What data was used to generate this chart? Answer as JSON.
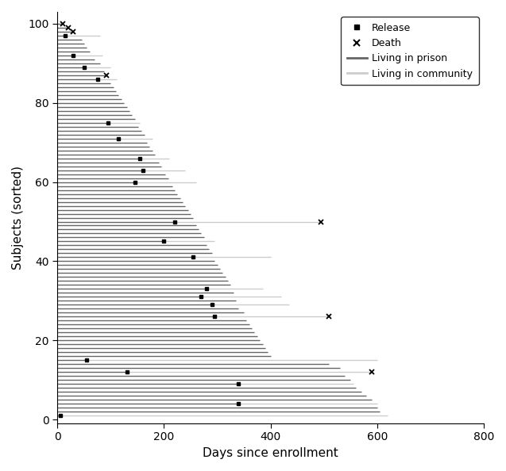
{
  "xlabel": "Days since enrollment",
  "ylabel": "Subjects (sorted)",
  "xlim": [
    0,
    800
  ],
  "ylim": [
    -1,
    103
  ],
  "xticks": [
    0,
    200,
    400,
    600,
    800
  ],
  "yticks": [
    0,
    20,
    40,
    60,
    80,
    100
  ],
  "prison_color": "#666666",
  "community_color": "#cccccc",
  "lw": 1.0,
  "legend_fontsize": 9,
  "axis_fontsize": 11,
  "subjects": [
    {
      "y": 100,
      "prison_end": 10,
      "total": 10,
      "release": null,
      "death": 10
    },
    {
      "y": 99,
      "prison_end": 20,
      "total": 20,
      "release": null,
      "death": 20
    },
    {
      "y": 98,
      "prison_end": 30,
      "total": 30,
      "release": null,
      "death": 30
    },
    {
      "y": 97,
      "prison_end": 15,
      "total": 80,
      "release": 15,
      "death": null
    },
    {
      "y": 96,
      "prison_end": 45,
      "total": 45,
      "release": null,
      "death": null
    },
    {
      "y": 95,
      "prison_end": 50,
      "total": 50,
      "release": null,
      "death": null
    },
    {
      "y": 94,
      "prison_end": 55,
      "total": 55,
      "release": null,
      "death": null
    },
    {
      "y": 93,
      "prison_end": 60,
      "total": 60,
      "release": null,
      "death": null
    },
    {
      "y": 92,
      "prison_end": 30,
      "total": 85,
      "release": 30,
      "death": null
    },
    {
      "y": 91,
      "prison_end": 70,
      "total": 70,
      "release": null,
      "death": null
    },
    {
      "y": 90,
      "prison_end": 80,
      "total": 80,
      "release": null,
      "death": null
    },
    {
      "y": 89,
      "prison_end": 50,
      "total": 100,
      "release": 50,
      "death": null
    },
    {
      "y": 88,
      "prison_end": 88,
      "total": 88,
      "release": null,
      "death": null
    },
    {
      "y": 87,
      "prison_end": 92,
      "total": 92,
      "release": null,
      "death": 92
    },
    {
      "y": 86,
      "prison_end": 75,
      "total": 112,
      "release": 75,
      "death": null
    },
    {
      "y": 85,
      "prison_end": 100,
      "total": 100,
      "release": null,
      "death": null
    },
    {
      "y": 84,
      "prison_end": 105,
      "total": 105,
      "release": null,
      "death": null
    },
    {
      "y": 83,
      "prison_end": 110,
      "total": 110,
      "release": null,
      "death": null
    },
    {
      "y": 82,
      "prison_end": 115,
      "total": 115,
      "release": null,
      "death": null
    },
    {
      "y": 81,
      "prison_end": 120,
      "total": 120,
      "release": null,
      "death": null
    },
    {
      "y": 80,
      "prison_end": 125,
      "total": 125,
      "release": null,
      "death": null
    },
    {
      "y": 79,
      "prison_end": 130,
      "total": 130,
      "release": null,
      "death": null
    },
    {
      "y": 78,
      "prison_end": 135,
      "total": 135,
      "release": null,
      "death": null
    },
    {
      "y": 77,
      "prison_end": 140,
      "total": 140,
      "release": null,
      "death": null
    },
    {
      "y": 76,
      "prison_end": 145,
      "total": 145,
      "release": null,
      "death": null
    },
    {
      "y": 75,
      "prison_end": 95,
      "total": 155,
      "release": 95,
      "death": null
    },
    {
      "y": 74,
      "prison_end": 152,
      "total": 152,
      "release": null,
      "death": null
    },
    {
      "y": 73,
      "prison_end": 158,
      "total": 158,
      "release": null,
      "death": null
    },
    {
      "y": 72,
      "prison_end": 163,
      "total": 163,
      "release": null,
      "death": null
    },
    {
      "y": 71,
      "prison_end": 115,
      "total": 178,
      "release": 115,
      "death": null
    },
    {
      "y": 70,
      "prison_end": 168,
      "total": 168,
      "release": null,
      "death": null
    },
    {
      "y": 69,
      "prison_end": 173,
      "total": 173,
      "release": null,
      "death": null
    },
    {
      "y": 68,
      "prison_end": 178,
      "total": 178,
      "release": null,
      "death": null
    },
    {
      "y": 67,
      "prison_end": 183,
      "total": 183,
      "release": null,
      "death": null
    },
    {
      "y": 66,
      "prison_end": 155,
      "total": 210,
      "release": 155,
      "death": null
    },
    {
      "y": 65,
      "prison_end": 190,
      "total": 190,
      "release": null,
      "death": null
    },
    {
      "y": 64,
      "prison_end": 195,
      "total": 195,
      "release": null,
      "death": null
    },
    {
      "y": 63,
      "prison_end": 160,
      "total": 240,
      "release": 160,
      "death": null
    },
    {
      "y": 62,
      "prison_end": 203,
      "total": 203,
      "release": null,
      "death": null
    },
    {
      "y": 61,
      "prison_end": 208,
      "total": 208,
      "release": null,
      "death": null
    },
    {
      "y": 60,
      "prison_end": 145,
      "total": 260,
      "release": 145,
      "death": null
    },
    {
      "y": 59,
      "prison_end": 215,
      "total": 215,
      "release": null,
      "death": null
    },
    {
      "y": 58,
      "prison_end": 220,
      "total": 220,
      "release": null,
      "death": null
    },
    {
      "y": 57,
      "prison_end": 225,
      "total": 225,
      "release": null,
      "death": null
    },
    {
      "y": 56,
      "prison_end": 230,
      "total": 230,
      "release": null,
      "death": null
    },
    {
      "y": 55,
      "prison_end": 235,
      "total": 235,
      "release": null,
      "death": null
    },
    {
      "y": 54,
      "prison_end": 240,
      "total": 240,
      "release": null,
      "death": null
    },
    {
      "y": 53,
      "prison_end": 245,
      "total": 245,
      "release": null,
      "death": null
    },
    {
      "y": 52,
      "prison_end": 250,
      "total": 250,
      "release": null,
      "death": null
    },
    {
      "y": 51,
      "prison_end": 255,
      "total": 255,
      "release": null,
      "death": null
    },
    {
      "y": 50,
      "prison_end": 220,
      "total": 495,
      "release": 220,
      "death": 495
    },
    {
      "y": 49,
      "prison_end": 260,
      "total": 260,
      "release": null,
      "death": null
    },
    {
      "y": 48,
      "prison_end": 265,
      "total": 265,
      "release": null,
      "death": null
    },
    {
      "y": 47,
      "prison_end": 270,
      "total": 270,
      "release": null,
      "death": null
    },
    {
      "y": 46,
      "prison_end": 275,
      "total": 275,
      "release": null,
      "death": null
    },
    {
      "y": 45,
      "prison_end": 200,
      "total": 295,
      "release": 200,
      "death": null
    },
    {
      "y": 44,
      "prison_end": 280,
      "total": 280,
      "release": null,
      "death": null
    },
    {
      "y": 43,
      "prison_end": 285,
      "total": 285,
      "release": null,
      "death": null
    },
    {
      "y": 42,
      "prison_end": 290,
      "total": 290,
      "release": null,
      "death": null
    },
    {
      "y": 41,
      "prison_end": 255,
      "total": 400,
      "release": 255,
      "death": null
    },
    {
      "y": 40,
      "prison_end": 295,
      "total": 295,
      "release": null,
      "death": null
    },
    {
      "y": 39,
      "prison_end": 300,
      "total": 300,
      "release": null,
      "death": null
    },
    {
      "y": 38,
      "prison_end": 305,
      "total": 305,
      "release": null,
      "death": null
    },
    {
      "y": 37,
      "prison_end": 310,
      "total": 310,
      "release": null,
      "death": null
    },
    {
      "y": 36,
      "prison_end": 315,
      "total": 315,
      "release": null,
      "death": null
    },
    {
      "y": 35,
      "prison_end": 320,
      "total": 320,
      "release": null,
      "death": null
    },
    {
      "y": 34,
      "prison_end": 325,
      "total": 325,
      "release": null,
      "death": null
    },
    {
      "y": 33,
      "prison_end": 280,
      "total": 385,
      "release": 280,
      "death": null
    },
    {
      "y": 32,
      "prison_end": 330,
      "total": 330,
      "release": null,
      "death": null
    },
    {
      "y": 31,
      "prison_end": 270,
      "total": 420,
      "release": 270,
      "death": null
    },
    {
      "y": 30,
      "prison_end": 335,
      "total": 335,
      "release": null,
      "death": null
    },
    {
      "y": 29,
      "prison_end": 290,
      "total": 435,
      "release": 290,
      "death": null
    },
    {
      "y": 28,
      "prison_end": 340,
      "total": 340,
      "release": null,
      "death": null
    },
    {
      "y": 27,
      "prison_end": 350,
      "total": 350,
      "release": null,
      "death": null
    },
    {
      "y": 26,
      "prison_end": 295,
      "total": 510,
      "release": 295,
      "death": 510
    },
    {
      "y": 25,
      "prison_end": 355,
      "total": 355,
      "release": null,
      "death": null
    },
    {
      "y": 24,
      "prison_end": 360,
      "total": 360,
      "release": null,
      "death": null
    },
    {
      "y": 23,
      "prison_end": 365,
      "total": 365,
      "release": null,
      "death": null
    },
    {
      "y": 22,
      "prison_end": 370,
      "total": 370,
      "release": null,
      "death": null
    },
    {
      "y": 21,
      "prison_end": 375,
      "total": 375,
      "release": null,
      "death": null
    },
    {
      "y": 20,
      "prison_end": 380,
      "total": 380,
      "release": null,
      "death": null
    },
    {
      "y": 19,
      "prison_end": 385,
      "total": 385,
      "release": null,
      "death": null
    },
    {
      "y": 18,
      "prison_end": 390,
      "total": 390,
      "release": null,
      "death": null
    },
    {
      "y": 17,
      "prison_end": 395,
      "total": 395,
      "release": null,
      "death": null
    },
    {
      "y": 16,
      "prison_end": 400,
      "total": 400,
      "release": null,
      "death": null
    },
    {
      "y": 15,
      "prison_end": 55,
      "total": 600,
      "release": 55,
      "death": null
    },
    {
      "y": 14,
      "prison_end": 420,
      "total": 510,
      "release": null,
      "death": null
    },
    {
      "y": 13,
      "prison_end": 440,
      "total": 530,
      "release": null,
      "death": null
    },
    {
      "y": 12,
      "prison_end": 130,
      "total": 590,
      "release": 130,
      "death": 590
    },
    {
      "y": 11,
      "prison_end": 450,
      "total": 540,
      "release": null,
      "death": null
    },
    {
      "y": 10,
      "prison_end": 460,
      "total": 550,
      "release": null,
      "death": null
    },
    {
      "y": 9,
      "prison_end": 340,
      "total": 555,
      "release": 340,
      "death": null
    },
    {
      "y": 8,
      "prison_end": 470,
      "total": 560,
      "release": null,
      "death": null
    },
    {
      "y": 7,
      "prison_end": 480,
      "total": 570,
      "release": null,
      "death": null
    },
    {
      "y": 6,
      "prison_end": 490,
      "total": 580,
      "release": null,
      "death": null
    },
    {
      "y": 5,
      "prison_end": 500,
      "total": 590,
      "release": null,
      "death": null
    },
    {
      "y": 4,
      "prison_end": 340,
      "total": 600,
      "release": 340,
      "death": null
    },
    {
      "y": 3,
      "prison_end": 520,
      "total": 600,
      "release": null,
      "death": null
    },
    {
      "y": 2,
      "prison_end": 530,
      "total": 605,
      "release": null,
      "death": null
    },
    {
      "y": 1,
      "prison_end": 5,
      "total": 620,
      "release": 5,
      "death": null
    }
  ]
}
